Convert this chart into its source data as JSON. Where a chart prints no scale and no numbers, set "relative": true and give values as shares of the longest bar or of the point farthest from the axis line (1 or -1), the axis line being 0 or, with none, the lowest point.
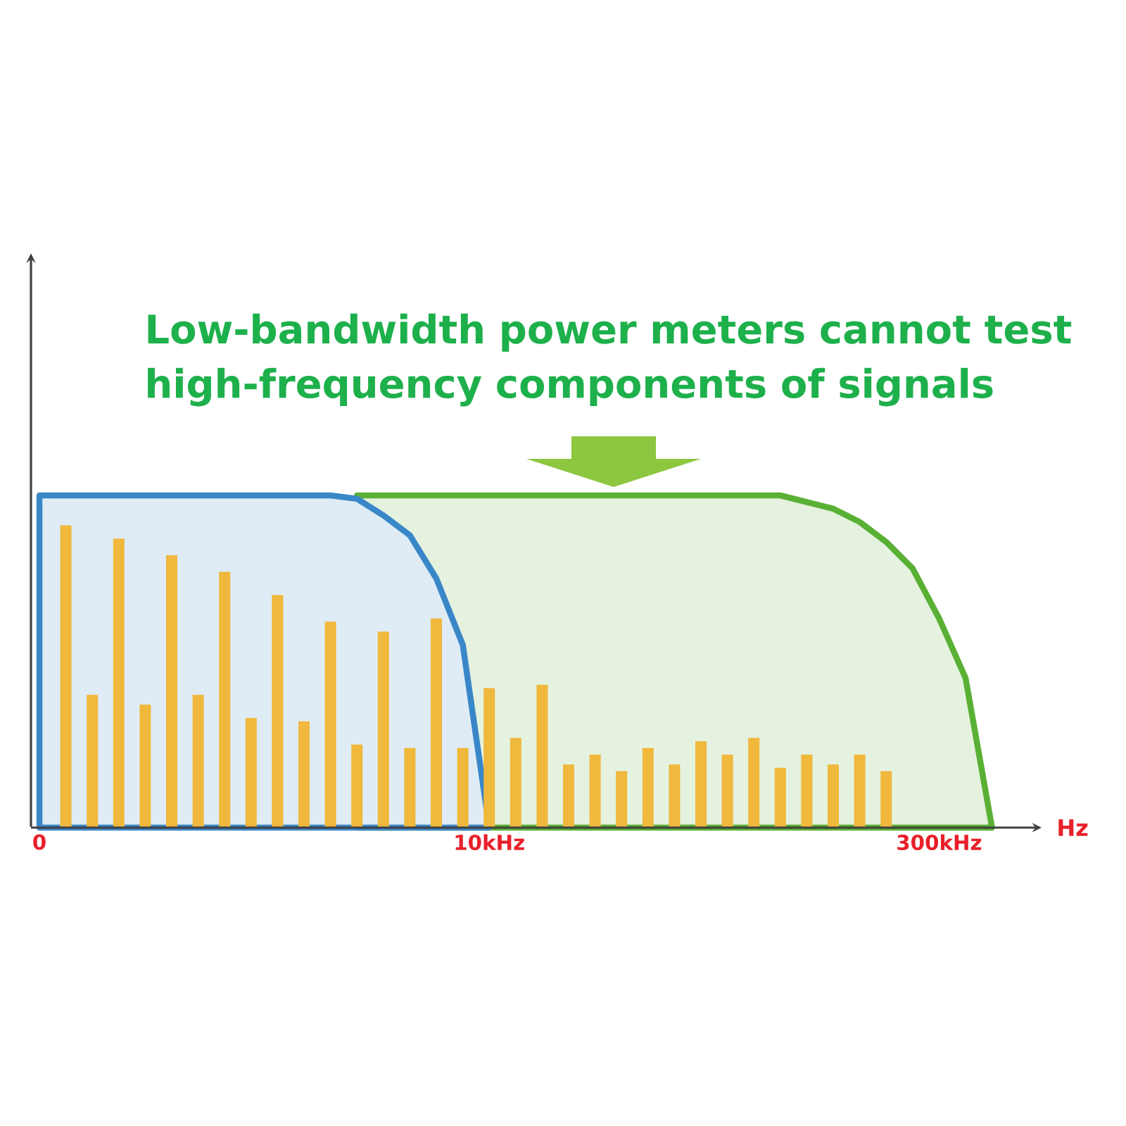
{
  "chart_data": {
    "type": "bar",
    "relative": true,
    "title": "Low-bandwidth power meters cannot test high-frequency components of signals",
    "xlabel": "Hz",
    "categories": [
      "0",
      null,
      null,
      null,
      null,
      null,
      null,
      null,
      null,
      null,
      null,
      null,
      null,
      null,
      null,
      null,
      null,
      "10kHz",
      null,
      null,
      null,
      null,
      null,
      null,
      null,
      null,
      null,
      null,
      null,
      null,
      null,
      null,
      null,
      null,
      "300kHz",
      null,
      null
    ],
    "series": [
      {
        "type": "area",
        "color": "#5ab034",
        "values": [
          null,
          null,
          null,
          null,
          null,
          null,
          null,
          null,
          null,
          null,
          null,
          null,
          1,
          1,
          1,
          1,
          1,
          1,
          1,
          1,
          1,
          1,
          1,
          1,
          1,
          1,
          1,
          1,
          1,
          0.98,
          0.96,
          0.92,
          0.86,
          0.78,
          0.63,
          0.45,
          0
        ]
      },
      {
        "type": "area",
        "color": "#3a87c8",
        "values": [
          1,
          1,
          1,
          1,
          1,
          1,
          1,
          1,
          1,
          1,
          1,
          1,
          0.99,
          0.94,
          0.88,
          0.75,
          0.55,
          0,
          null,
          null,
          null,
          null,
          null,
          null,
          null,
          null,
          null,
          null,
          null,
          null,
          null,
          null,
          null,
          null,
          null,
          null,
          null
        ]
      },
      {
        "color": "#f0b83c",
        "values": [
          null,
          0.91,
          0.4,
          0.87,
          0.37,
          0.82,
          0.4,
          0.77,
          0.33,
          0.7,
          0.32,
          0.62,
          0.25,
          0.59,
          0.24,
          0.63,
          0.24,
          0.42,
          0.27,
          0.43,
          0.19,
          0.22,
          0.17,
          0.24,
          0.19,
          0.26,
          0.22,
          0.27,
          0.18,
          0.22,
          0.19,
          0.22,
          0.17,
          null,
          null,
          null,
          null
        ]
      }
    ]
  }
}
